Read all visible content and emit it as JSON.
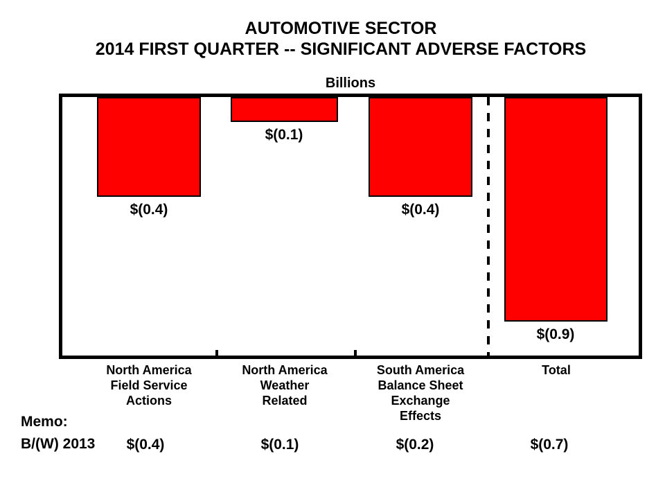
{
  "chart_data": {
    "type": "bar",
    "title": "AUTOMOTIVE SECTOR",
    "subtitle": "2014 FIRST QUARTER -- SIGNIFICANT ADVERSE FACTORS",
    "unit_label": "Billions",
    "categories": [
      "North America Field Service Actions",
      "North America Weather Related",
      "South America Balance Sheet Exchange Effects",
      "Total"
    ],
    "category_label_lines": [
      [
        "North America",
        "Field Service",
        "Actions"
      ],
      [
        "North America",
        "Weather",
        "Related"
      ],
      [
        "South America",
        "Balance Sheet",
        "Exchange",
        "Effects"
      ],
      [
        "Total"
      ]
    ],
    "values": [
      -0.4,
      -0.1,
      -0.4,
      -0.9
    ],
    "data_labels": [
      "$(0.4)",
      "$(0.1)",
      "$(0.4)",
      "$(0.9)"
    ],
    "ylim": [
      -1.04,
      0
    ],
    "bar_color": "#ff0000",
    "bar_border_color": "#000000",
    "separator_note": "dashed vertical line between components and Total column",
    "legend": "none",
    "grid": "off",
    "memo": {
      "heading": "Memo:",
      "row_label": "B/(W) 2013",
      "values": [
        "$(0.4)",
        "$(0.1)",
        "$(0.2)",
        "$(0.7)"
      ]
    }
  }
}
